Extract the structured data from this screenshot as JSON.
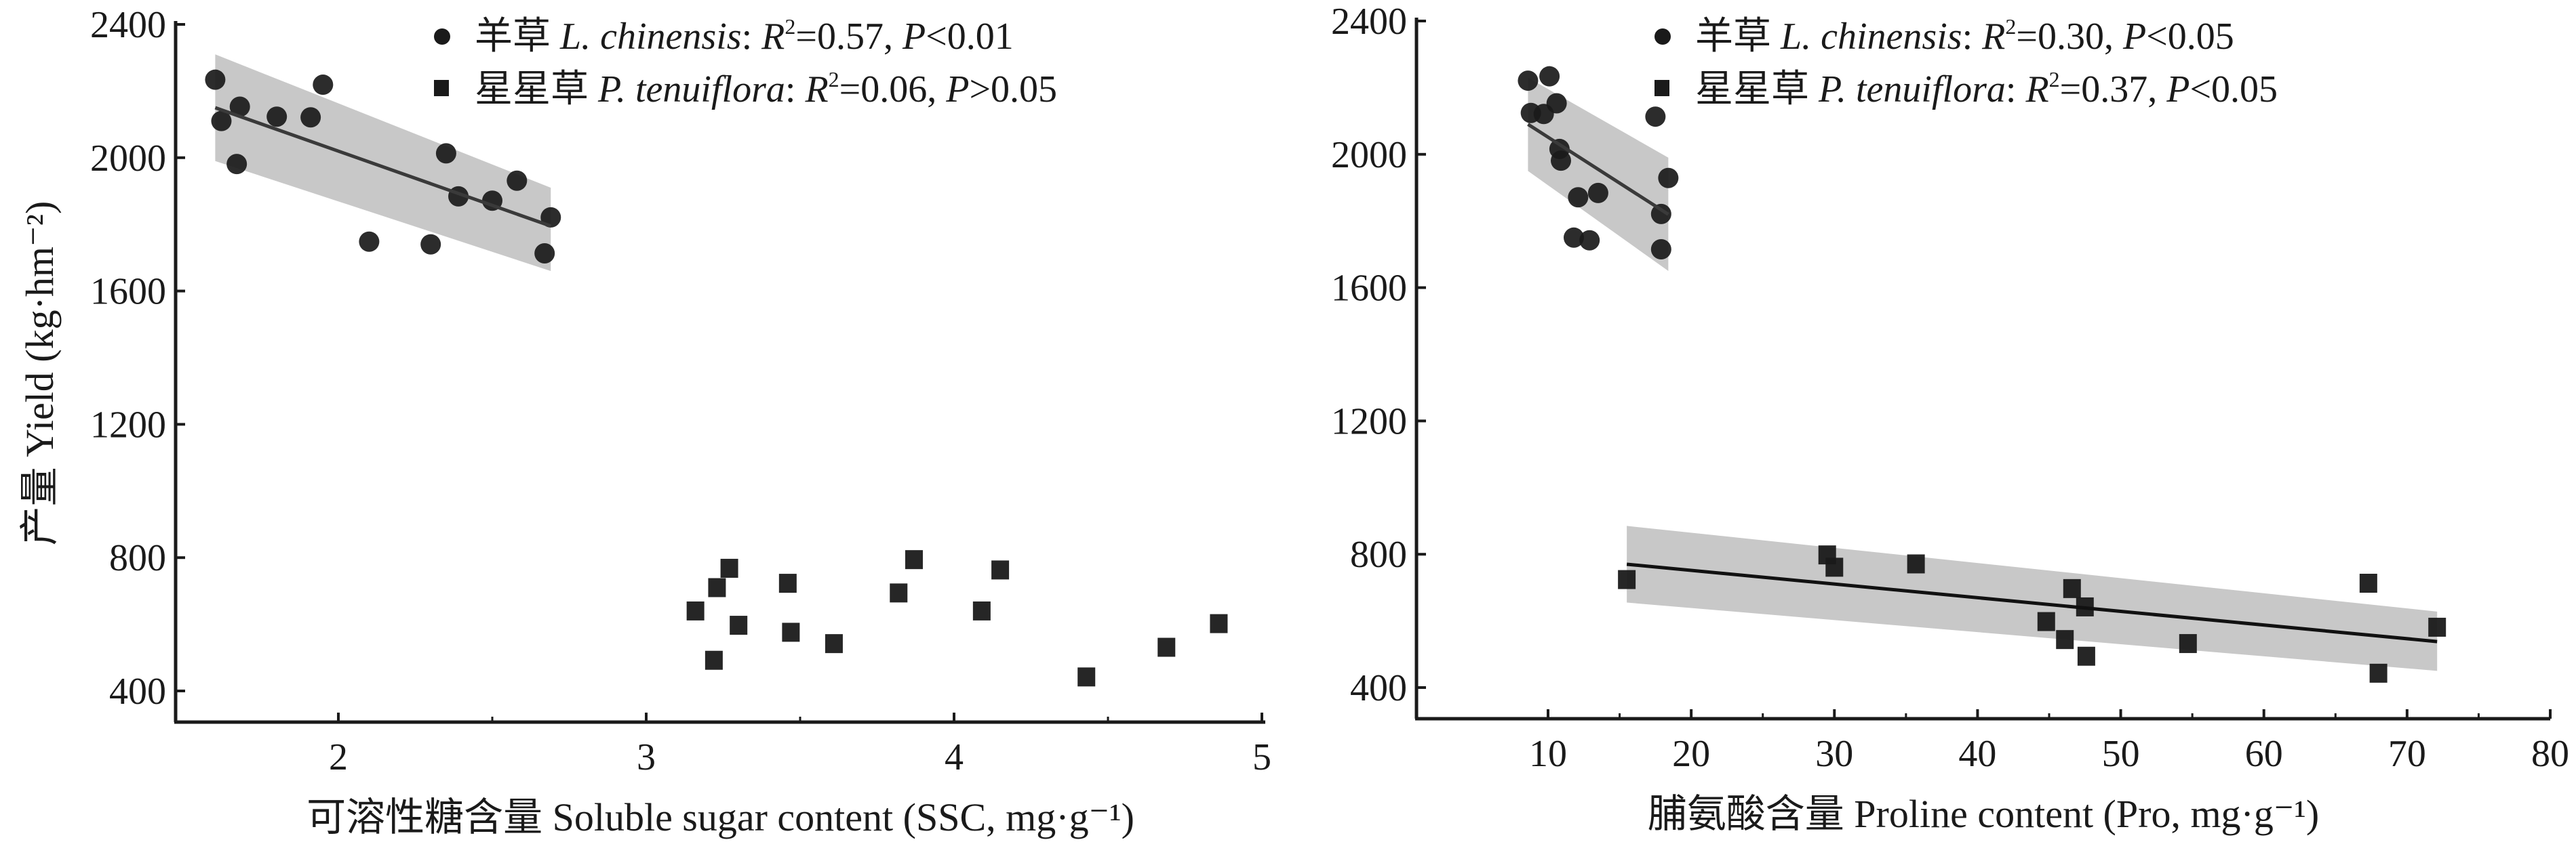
{
  "chart_data": [
    {
      "type": "scatter",
      "xlabel": "可溶性糖含量 Soluble sugar content (SSC, mg·g⁻¹)",
      "ylabel": "产量 Yield (kg·hm⁻²)",
      "xlim": [
        1.5,
        5
      ],
      "ylim": [
        300,
        2400
      ],
      "xticks": [
        2,
        3,
        4,
        5
      ],
      "yticks": [
        400,
        800,
        1200,
        1600,
        2000,
        2400
      ],
      "legend_position": "top-right",
      "series": [
        {
          "name": "L. chinensis",
          "cn": "羊草",
          "latin": "L. chinensis",
          "r2": "0.57",
          "p": "<0.01",
          "marker": "circle",
          "color": "#1a1a1a",
          "x": [
            1.6,
            1.62,
            1.67,
            1.68,
            1.8,
            1.91,
            1.95,
            2.1,
            2.3,
            2.35,
            2.39,
            2.5,
            2.58,
            2.67,
            2.69
          ],
          "y": [
            2234,
            2110,
            1981,
            2153,
            2123,
            2121,
            2219,
            1748,
            1740,
            2013,
            1884,
            1871,
            1931,
            1713,
            1821
          ],
          "fit": {
            "x": [
              1.6,
              2.69
            ],
            "y": [
              2150,
              1795
            ],
            "ci_lower": [
              1990,
              1660
            ],
            "ci_upper": [
              2310,
              1910
            ]
          }
        },
        {
          "name": "P. tenuiflora",
          "cn": "星星草",
          "latin": "P. tenuiflora",
          "r2": "0.06",
          "p": ">0.05",
          "marker": "square",
          "color": "#1a1a1a",
          "x": [
            3.16,
            3.23,
            3.22,
            3.27,
            3.3,
            3.46,
            3.47,
            3.61,
            3.82,
            3.87,
            4.09,
            4.15,
            4.43,
            4.69,
            4.86
          ],
          "y": [
            640,
            710,
            492,
            768,
            597,
            723,
            576,
            542,
            694,
            794,
            640,
            763,
            442,
            531,
            602
          ]
        }
      ]
    },
    {
      "type": "scatter",
      "xlabel": "脯氨酸含量 Proline content (Pro, mg·g⁻¹)",
      "ylabel": "",
      "xlim": [
        1,
        80
      ],
      "ylim": [
        300,
        2400
      ],
      "xticks": [
        10,
        20,
        30,
        40,
        50,
        60,
        70,
        80
      ],
      "yticks": [
        400,
        800,
        1200,
        1600,
        2000,
        2400
      ],
      "legend_position": "top-right",
      "series": [
        {
          "name": "L. chinensis",
          "cn": "羊草",
          "latin": "L. chinensis",
          "r2": "0.30",
          "p": "<0.05",
          "marker": "circle",
          "color": "#1a1a1a",
          "x": [
            8.6,
            10.1,
            8.8,
            9.7,
            10.6,
            10.8,
            10.9,
            12.1,
            13.5,
            11.8,
            12.9,
            17.5,
            17.9,
            17.9,
            18.4
          ],
          "y": [
            2221,
            2234,
            2124,
            2121,
            2153,
            2016,
            1981,
            1871,
            1884,
            1750,
            1742,
            2113,
            1821,
            1715,
            1929
          ],
          "fit": {
            "x": [
              8.6,
              18.4
            ],
            "y": [
              2090,
              1820
            ],
            "ci_lower": [
              1950,
              1650
            ],
            "ci_upper": [
              2230,
              1990
            ]
          }
        },
        {
          "name": "P. tenuiflora",
          "cn": "星星草",
          "latin": "P. tenuiflora",
          "r2": "0.37",
          "p": "<0.05",
          "marker": "square",
          "color": "#1a1a1a",
          "x": [
            15.5,
            29.5,
            30.0,
            35.7,
            44.8,
            46.6,
            47.5,
            46.1,
            47.6,
            54.7,
            67.3,
            68.0,
            72.1
          ],
          "y": [
            724,
            798,
            761,
            771,
            598,
            697,
            642,
            544,
            494,
            532,
            713,
            443,
            581
          ],
          "fit": {
            "x": [
              15.5,
              72.1
            ],
            "y": [
              770,
              538
            ],
            "ci_lower": [
              655,
              450
            ],
            "ci_upper": [
              885,
              628
            ]
          }
        }
      ]
    }
  ],
  "colors": {
    "band": "#c8c8c8",
    "line": "#3a3a3a",
    "marker": "#1a1a1a",
    "axis": "#1a1a1a"
  }
}
